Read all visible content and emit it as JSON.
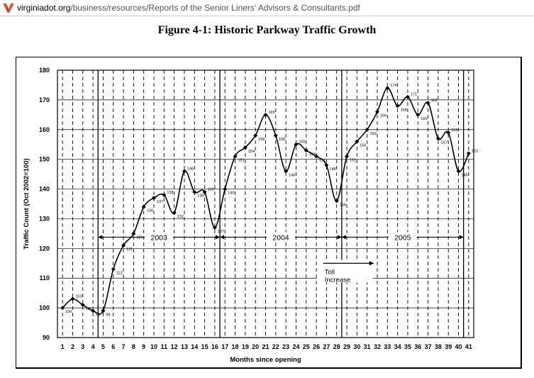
{
  "browser": {
    "url_domain": "virginiadot.org",
    "url_path": "/business/resources/Reports of the Senior Liners' Advisors & Consultants.pdf",
    "logo_icon": "vdot-v-logo-icon"
  },
  "figure_title": "Figure 4-1: Historic Parkway Traffic Growth",
  "chart_data": {
    "type": "line",
    "title": "Figure 4-1: Historic Parkway Traffic Growth",
    "xlabel": "Months since opening",
    "ylabel": "Traffic Count (Oct 2002=100)",
    "xlim": [
      1,
      41
    ],
    "ylim": [
      90,
      180
    ],
    "yticks": [
      90,
      100,
      110,
      120,
      130,
      140,
      150,
      160,
      170,
      180
    ],
    "x": [
      1,
      2,
      3,
      4,
      5,
      6,
      7,
      8,
      9,
      10,
      11,
      12,
      13,
      14,
      15,
      16,
      17,
      18,
      19,
      20,
      21,
      22,
      23,
      24,
      25,
      26,
      27,
      28,
      29,
      30,
      31,
      32,
      33,
      34,
      35,
      36,
      37,
      38,
      39,
      40,
      41
    ],
    "x_tick_labels": [
      "1",
      "2",
      "3",
      "4",
      "5",
      "6",
      "7",
      "8",
      "9",
      "10",
      "11",
      "12",
      "13",
      "14",
      "15",
      "16",
      "17",
      "18",
      "19",
      "20",
      "21",
      "22",
      "23",
      "24",
      "25",
      "26",
      "27",
      "28",
      "29",
      "30",
      "31",
      "32",
      "33",
      "34",
      "35",
      "36",
      "37",
      "38",
      "39",
      "40",
      "41"
    ],
    "series": [
      {
        "values": [
          100,
          103,
          101,
          99,
          99,
          113,
          121,
          125,
          134,
          137,
          138,
          132,
          146,
          139,
          139,
          127,
          140,
          151,
          154,
          158,
          165,
          158,
          146,
          155,
          153,
          151,
          148,
          136,
          151,
          156,
          160,
          166,
          174,
          168,
          171,
          165,
          169,
          157,
          159,
          146,
          152
        ]
      }
    ],
    "data_labels": [
      "100",
      "103",
      "101",
      "99",
      "99",
      "113",
      "121",
      "125",
      "134",
      "137",
      "138",
      "132",
      "146",
      "139",
      "139",
      "127",
      "140",
      "151",
      "154",
      "158",
      "165",
      "158",
      "146",
      "155",
      "153",
      "151",
      "148",
      "136",
      "151",
      "156",
      "160",
      "166",
      "174",
      "168",
      "171",
      "165",
      "169",
      "157",
      "159",
      "146",
      "152"
    ],
    "years": [
      {
        "label": "2003",
        "from": 4,
        "to": 16
      },
      {
        "label": "2004",
        "from": 16,
        "to": 28
      },
      {
        "label": "2005",
        "from": 28,
        "to": 40
      }
    ],
    "year_dividers": [
      4,
      16,
      28,
      40
    ],
    "annotation": {
      "text_line1": "Toll",
      "text_line2": "Increase",
      "arrow_from_month": 28,
      "arrow_to_month": 31,
      "arrow_y": 115
    },
    "grid": true,
    "line_color": "#000000"
  }
}
